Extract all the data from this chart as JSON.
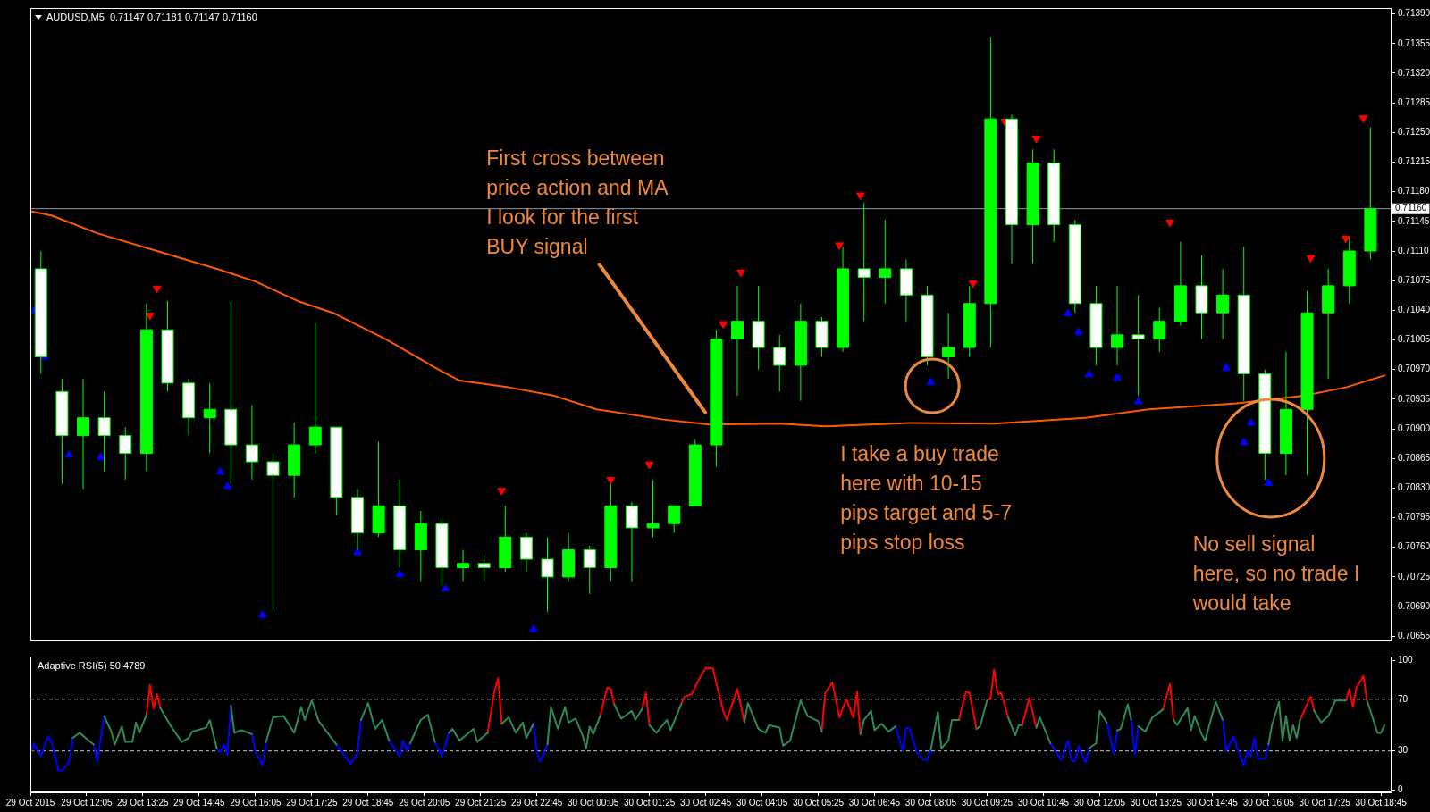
{
  "chart_data": [
    {
      "type": "candlestick",
      "title": "AUDUSD,M5  0.71147 0.71181 0.71147 0.71160",
      "color": "#00ff00",
      "colors": [
        "#ffffff",
        "#ffffff",
        "#00ff00",
        "#ffffff",
        "#ffffff",
        "#00ff00",
        "#ffffff",
        "#ffffff",
        "#00ff00",
        "#ffffff",
        "#ffffff",
        "#ffffff",
        "#00ff00",
        "#00ff00",
        "#ffffff",
        "#ffffff",
        "#00ff00",
        "#ffffff",
        "#00ff00",
        "#ffffff",
        "#00ff00",
        "#ffffff",
        "#00ff00",
        "#ffffff",
        "#ffffff",
        "#00ff00",
        "#ffffff",
        "#00ff00",
        "#ffffff",
        "#00ff00",
        "#00ff00",
        "#00ff00",
        "#00ff00",
        "#00ff00",
        "#ffffff",
        "#ffffff",
        "#00ff00",
        "#ffffff",
        "#00ff00",
        "#ffffff",
        "#00ff00",
        "#ffffff",
        "#ffffff",
        "#00ff00",
        "#00ff00",
        "#00ff00",
        "#ffffff",
        "#00ff00",
        "#ffffff",
        "#ffffff",
        "#ffffff",
        "#00ff00",
        "#ffffff",
        "#00ff00",
        "#00ff00",
        "#ffffff",
        "#00ff00",
        "#ffffff",
        "#ffffff",
        "#00ff00",
        "#00ff00",
        "#00ff00",
        "#00ff00",
        "#00ff00"
      ],
      "x": [
        "2015-10-29T11:00",
        "2015-10-29T11:30",
        "2015-10-29T12:00",
        "2015-10-29T12:30",
        "2015-10-29T13:00",
        "2015-10-29T13:30",
        "2015-10-29T14:00",
        "2015-10-29T14:30",
        "2015-10-29T15:00",
        "2015-10-29T15:30",
        "2015-10-29T16:00",
        "2015-10-29T16:30",
        "2015-10-29T17:00",
        "2015-10-29T17:30",
        "2015-10-29T18:00",
        "2015-10-29T18:30",
        "2015-10-29T19:00",
        "2015-10-29T19:30",
        "2015-10-29T20:00",
        "2015-10-29T20:30",
        "2015-10-29T21:00",
        "2015-10-29T21:30",
        "2015-10-29T22:00",
        "2015-10-29T22:30",
        "2015-10-29T23:00",
        "2015-10-29T23:30",
        "2015-10-30T00:00",
        "2015-10-30T00:30",
        "2015-10-30T01:00",
        "2015-10-30T01:30",
        "2015-10-30T02:00",
        "2015-10-30T02:30",
        "2015-10-30T03:00",
        "2015-10-30T03:30",
        "2015-10-30T04:00",
        "2015-10-30T04:30",
        "2015-10-30T05:00",
        "2015-10-30T05:30",
        "2015-10-30T06:00",
        "2015-10-30T06:30",
        "2015-10-30T07:00",
        "2015-10-30T07:30",
        "2015-10-30T08:00",
        "2015-10-30T08:30",
        "2015-10-30T09:00",
        "2015-10-30T09:30",
        "2015-10-30T10:00",
        "2015-10-30T10:30",
        "2015-10-30T11:00",
        "2015-10-30T11:30",
        "2015-10-30T12:00",
        "2015-10-30T12:30",
        "2015-10-30T13:00",
        "2015-10-30T13:30",
        "2015-10-30T14:00",
        "2015-10-30T14:30",
        "2015-10-30T15:00",
        "2015-10-30T15:30",
        "2015-10-30T16:00",
        "2015-10-30T16:30",
        "2015-10-30T17:00",
        "2015-10-30T17:30",
        "2015-10-30T18:00",
        "2015-10-30T18:30"
      ],
      "ohlc": [
        [
          0.71089,
          0.7111,
          0.70965,
          0.70985
        ],
        [
          0.70944,
          0.70959,
          0.70835,
          0.70892
        ],
        [
          0.70892,
          0.70959,
          0.70829,
          0.70913
        ],
        [
          0.70913,
          0.70944,
          0.7085,
          0.70892
        ],
        [
          0.70892,
          0.70902,
          0.7084,
          0.70871
        ],
        [
          0.70871,
          0.71048,
          0.7085,
          0.71017
        ],
        [
          0.71017,
          0.71051,
          0.70944,
          0.70954
        ],
        [
          0.70954,
          0.70959,
          0.70892,
          0.70913
        ],
        [
          0.70913,
          0.70954,
          0.70871,
          0.70923
        ],
        [
          0.70923,
          0.71051,
          0.70835,
          0.70881
        ],
        [
          0.70881,
          0.70928,
          0.7084,
          0.70861
        ],
        [
          0.70861,
          0.70871,
          0.70686,
          0.70845
        ],
        [
          0.70845,
          0.70907,
          0.70819,
          0.70881
        ],
        [
          0.70881,
          0.71025,
          0.70871,
          0.70902
        ],
        [
          0.70902,
          0.70902,
          0.70798,
          0.70819
        ],
        [
          0.70819,
          0.70829,
          0.70757,
          0.70777
        ],
        [
          0.70777,
          0.70885,
          0.70772,
          0.70809
        ],
        [
          0.70809,
          0.7084,
          0.70736,
          0.70757
        ],
        [
          0.70757,
          0.70803,
          0.7072,
          0.70788
        ],
        [
          0.70788,
          0.70793,
          0.70715,
          0.70736
        ],
        [
          0.70736,
          0.70757,
          0.7072,
          0.70741
        ],
        [
          0.70741,
          0.70751,
          0.7072,
          0.70736
        ],
        [
          0.70736,
          0.70809,
          0.70731,
          0.70772
        ],
        [
          0.70772,
          0.70777,
          0.70731,
          0.70746
        ],
        [
          0.70746,
          0.70772,
          0.70684,
          0.70725
        ],
        [
          0.70725,
          0.70777,
          0.7072,
          0.70757
        ],
        [
          0.70757,
          0.70762,
          0.70705,
          0.70736
        ],
        [
          0.70736,
          0.70835,
          0.7072,
          0.70809
        ],
        [
          0.70809,
          0.70814,
          0.7072,
          0.70783
        ],
        [
          0.70783,
          0.7084,
          0.70772,
          0.70788
        ],
        [
          0.70788,
          0.70809,
          0.70777,
          0.70809
        ],
        [
          0.70809,
          0.70887,
          0.70809,
          0.70881
        ],
        [
          0.70881,
          0.71017,
          0.70855,
          0.71006
        ],
        [
          0.71006,
          0.71069,
          0.70939,
          0.71027
        ],
        [
          0.71027,
          0.71069,
          0.7097,
          0.70996
        ],
        [
          0.70996,
          0.71011,
          0.70944,
          0.70975
        ],
        [
          0.70975,
          0.71048,
          0.70933,
          0.71027
        ],
        [
          0.71027,
          0.71032,
          0.70985,
          0.70996
        ],
        [
          0.70996,
          0.71115,
          0.70991,
          0.71089
        ],
        [
          0.71089,
          0.71167,
          0.71027,
          0.71079
        ],
        [
          0.71079,
          0.71147,
          0.71048,
          0.71089
        ],
        [
          0.71089,
          0.711,
          0.71027,
          0.71058
        ],
        [
          0.71058,
          0.71069,
          0.70975,
          0.70985
        ],
        [
          0.70985,
          0.71037,
          0.70959,
          0.70996
        ],
        [
          0.70996,
          0.71069,
          0.70985,
          0.71048
        ],
        [
          0.71048,
          0.71363,
          0.70996,
          0.71266
        ],
        [
          0.71266,
          0.71271,
          0.71095,
          0.71141
        ],
        [
          0.71141,
          0.7123,
          0.71095,
          0.71214
        ],
        [
          0.71214,
          0.7123,
          0.71121,
          0.71141
        ],
        [
          0.71141,
          0.71147,
          0.71037,
          0.71048
        ],
        [
          0.71048,
          0.71069,
          0.70975,
          0.70996
        ],
        [
          0.70996,
          0.71069,
          0.70975,
          0.71011
        ],
        [
          0.71011,
          0.71058,
          0.70939,
          0.71006
        ],
        [
          0.71006,
          0.71043,
          0.70991,
          0.71027
        ],
        [
          0.71027,
          0.71121,
          0.71022,
          0.71069
        ],
        [
          0.71069,
          0.71105,
          0.71006,
          0.71037
        ],
        [
          0.71037,
          0.71089,
          0.71006,
          0.71058
        ],
        [
          0.71058,
          0.71115,
          0.70933,
          0.70965
        ],
        [
          0.70965,
          0.7097,
          0.7084,
          0.70871
        ],
        [
          0.70871,
          0.70991,
          0.70845,
          0.70923
        ],
        [
          0.70923,
          0.71063,
          0.70845,
          0.71037
        ],
        [
          0.71037,
          0.71089,
          0.70959,
          0.71069
        ],
        [
          0.71069,
          0.71126,
          0.71048,
          0.7111
        ],
        [
          0.7111,
          0.71256,
          0.711,
          0.7116
        ]
      ],
      "series": [
        {
          "type": "line",
          "color": "#ff5a00",
          "x": [
            "2015-10-29T10:45",
            "2015-10-29T11:15",
            "2015-10-29T12:20",
            "2015-10-29T13:45",
            "2015-10-29T15:10",
            "2015-10-29T16:05",
            "2015-10-29T17:05",
            "2015-10-29T17:55",
            "2015-10-29T19:10",
            "2015-10-29T20:25",
            "2015-10-29T20:55",
            "2015-10-29T22:05",
            "2015-10-29T23:10",
            "2015-10-30T00:10",
            "2015-10-30T01:45",
            "2015-10-30T02:50",
            "2015-10-30T04:30",
            "2015-10-30T05:35",
            "2015-10-30T07:35",
            "2015-10-30T09:35",
            "2015-10-30T11:45",
            "2015-10-30T13:15",
            "2015-10-30T15:20",
            "2015-10-30T16:55",
            "2015-10-30T17:55",
            "2015-10-30T18:50"
          ],
          "values": [
            0.71157,
            0.71152,
            0.71131,
            0.7111,
            0.71089,
            0.71074,
            0.71051,
            0.71037,
            0.71006,
            0.7097,
            0.70957,
            0.70949,
            0.70939,
            0.70923,
            0.70911,
            0.70905,
            0.70906,
            0.70903,
            0.70907,
            0.70906,
            0.70913,
            0.70923,
            0.7093,
            0.70939,
            0.70949,
            0.70963
          ]
        },
        {
          "type": "scatter",
          "color": "#0000ff",
          "marker": "triangle",
          "x": [
            "2015-10-29T10:50",
            "2015-10-29T11:05",
            "2015-10-29T11:40",
            "2015-10-29T12:25",
            "2015-10-29T15:15",
            "2015-10-29T15:25",
            "2015-10-29T16:15",
            "2015-10-29T18:30",
            "2015-10-29T19:30",
            "2015-10-29T20:35",
            "2015-10-29T22:40",
            "2015-10-30T08:05",
            "2015-10-30T11:20",
            "2015-10-30T11:35",
            "2015-10-30T11:50",
            "2015-10-30T12:30",
            "2015-10-30T13:00",
            "2015-10-30T15:05",
            "2015-10-30T15:30",
            "2015-10-30T15:40",
            "2015-10-30T16:05"
          ],
          "values": [
            0.71039,
            0.70985,
            0.70869,
            0.70866,
            0.70849,
            0.70832,
            0.7068,
            0.70754,
            0.70728,
            0.70711,
            0.70663,
            0.70955,
            0.71036,
            0.71014,
            0.70964,
            0.7096,
            0.70932,
            0.70972,
            0.70884,
            0.70907,
            0.70836
          ]
        },
        {
          "type": "scatter",
          "color": "#ff0000",
          "marker": "triangle",
          "x": [
            "2015-10-29T13:35",
            "2015-10-29T13:45",
            "2015-10-29T21:55",
            "2015-10-30T00:30",
            "2015-10-30T01:25",
            "2015-10-30T03:10",
            "2015-10-30T03:35",
            "2015-10-30T05:55",
            "2015-10-30T06:25",
            "2015-10-30T09:05",
            "2015-10-30T09:50",
            "2015-10-30T10:35",
            "2015-10-30T13:45",
            "2015-10-30T17:05",
            "2015-10-30T17:55",
            "2015-10-30T18:20"
          ],
          "values": [
            0.71034,
            0.71066,
            0.70827,
            0.7084,
            0.70858,
            0.71024,
            0.71085,
            0.71117,
            0.71176,
            0.71072,
            0.71263,
            0.71243,
            0.71144,
            0.71102,
            0.71125,
            0.71267
          ]
        }
      ],
      "xlim": [
        "2015-10-29T10:45",
        "2015-10-30T19:00"
      ],
      "ylim": [
        0.7065,
        0.71397
      ],
      "yticks": [
        {
          "value": 0.7139,
          "label": "0.71390"
        },
        0.71355,
        {
          "value": 0.7132,
          "label": "0.71320"
        },
        0.71285,
        {
          "value": 0.7125,
          "label": "0.71250"
        },
        0.71215,
        {
          "value": 0.7118,
          "label": "0.71180"
        },
        0.71145,
        {
          "value": 0.7111,
          "label": "0.71110"
        },
        0.71075,
        {
          "value": 0.7104,
          "label": "0.71040"
        },
        0.71005,
        {
          "value": 0.7097,
          "label": "0.70970"
        },
        0.70935,
        {
          "value": 0.709,
          "label": "0.70900"
        },
        0.70865,
        {
          "value": 0.7083,
          "label": "0.70830"
        },
        0.70795,
        {
          "value": 0.7076,
          "label": "0.70760"
        },
        0.70725,
        {
          "value": 0.7069,
          "label": "0.70690"
        },
        0.70655
      ],
      "tick_labels": "y",
      "ref_lines": [
        {
          "axis": "y",
          "value": 0.7116,
          "label": "0.71160",
          "color": "#8c96a0"
        }
      ],
      "annotations": [
        "First cross between\nprice action and MA\nI look for the first\nBUY signal",
        "I take a buy trade\nhere with 10-15\npips target and 5-7\npips stop loss",
        "No sell signal\nhere, so no trade I\nwould take"
      ]
    },
    {
      "type": "line",
      "title": "Adaptive RSI(5) 50.4789",
      "x": [
        "2015-10-29T10:45",
        "2015-10-29T10:50",
        "2015-10-29T11:00",
        "2015-10-29T11:10",
        "2015-10-29T11:15",
        "2015-10-29T11:25",
        "2015-10-29T11:30",
        "2015-10-29T11:40",
        "2015-10-29T11:45",
        "2015-10-29T11:55",
        "2015-10-29T12:15",
        "2015-10-29T12:20",
        "2015-10-29T12:30",
        "2015-10-29T12:40",
        "2015-10-29T12:45",
        "2015-10-29T12:55",
        "2015-10-29T13:00",
        "2015-10-29T13:10",
        "2015-10-29T13:15",
        "2015-10-29T13:20",
        "2015-10-29T13:30",
        "2015-10-29T13:35",
        "2015-10-29T13:40",
        "2015-10-29T13:45",
        "2015-10-29T13:50",
        "2015-10-29T14:05",
        "2015-10-29T14:20",
        "2015-10-29T14:30",
        "2015-10-29T14:35",
        "2015-10-29T14:55",
        "2015-10-29T15:00",
        "2015-10-29T15:10",
        "2015-10-29T15:15",
        "2015-10-29T15:20",
        "2015-10-29T15:25",
        "2015-10-29T15:30",
        "2015-10-29T15:35",
        "2015-10-29T15:45",
        "2015-10-29T16:00",
        "2015-10-29T16:05",
        "2015-10-29T16:15",
        "2015-10-29T16:20",
        "2015-10-29T16:30",
        "2015-10-29T16:45",
        "2015-10-29T17:00",
        "2015-10-29T17:10",
        "2015-10-29T17:15",
        "2015-10-29T17:25",
        "2015-10-29T17:35",
        "2015-10-29T18:00",
        "2015-10-29T18:20",
        "2015-10-29T18:30",
        "2015-10-29T18:35",
        "2015-10-29T18:45",
        "2015-10-29T18:55",
        "2015-10-29T19:05",
        "2015-10-29T19:15",
        "2015-10-29T19:30",
        "2015-10-29T19:35",
        "2015-10-29T19:40",
        "2015-10-29T19:45",
        "2015-10-29T20:00",
        "2015-10-29T20:10",
        "2015-10-29T20:20",
        "2015-10-29T20:30",
        "2015-10-29T20:40",
        "2015-10-29T20:45",
        "2015-10-29T20:55",
        "2015-10-29T21:15",
        "2015-10-29T21:20",
        "2015-10-29T21:35",
        "2015-10-29T21:45",
        "2015-10-29T21:50",
        "2015-10-29T21:55",
        "2015-10-29T22:05",
        "2015-10-29T22:15",
        "2015-10-29T22:25",
        "2015-10-29T22:30",
        "2015-10-29T22:40",
        "2015-10-29T22:45",
        "2015-10-29T22:50",
        "2015-10-29T23:00",
        "2015-10-29T23:05",
        "2015-10-29T23:15",
        "2015-10-29T23:25",
        "2015-10-29T23:30",
        "2015-10-29T23:40",
        "2015-10-29T23:50",
        "2015-10-29T23:55",
        "2015-10-30T00:00",
        "2015-10-30T00:05",
        "2015-10-30T00:15",
        "2015-10-30T00:25",
        "2015-10-30T00:30",
        "2015-10-30T00:35",
        "2015-10-30T00:45",
        "2015-10-30T01:00",
        "2015-10-30T01:05",
        "2015-10-30T01:15",
        "2015-10-30T01:20",
        "2015-10-30T01:25",
        "2015-10-30T01:35",
        "2015-10-30T01:50",
        "2015-10-30T01:55",
        "2015-10-30T02:10",
        "2015-10-30T02:15",
        "2015-10-30T02:25",
        "2015-10-30T02:35",
        "2015-10-30T02:45",
        "2015-10-30T02:55",
        "2015-10-30T03:00",
        "2015-10-30T03:10",
        "2015-10-30T03:15",
        "2015-10-30T03:30",
        "2015-10-30T03:40",
        "2015-10-30T03:45",
        "2015-10-30T04:00",
        "2015-10-30T04:10",
        "2015-10-30T04:15",
        "2015-10-30T04:30",
        "2015-10-30T04:35",
        "2015-10-30T04:45",
        "2015-10-30T05:00",
        "2015-10-30T05:10",
        "2015-10-30T05:25",
        "2015-10-30T05:30",
        "2015-10-30T05:35",
        "2015-10-30T05:45",
        "2015-10-30T05:55",
        "2015-10-30T06:05",
        "2015-10-30T06:15",
        "2015-10-30T06:20",
        "2015-10-30T06:25",
        "2015-10-30T06:30",
        "2015-10-30T06:40",
        "2015-10-30T06:45",
        "2015-10-30T06:55",
        "2015-10-30T07:05",
        "2015-10-30T07:15",
        "2015-10-30T07:25",
        "2015-10-30T07:30",
        "2015-10-30T07:35",
        "2015-10-30T07:45",
        "2015-10-30T07:55",
        "2015-10-30T08:00",
        "2015-10-30T08:05",
        "2015-10-30T08:15",
        "2015-10-30T08:20",
        "2015-10-30T08:30",
        "2015-10-30T08:35",
        "2015-10-30T08:45",
        "2015-10-30T08:55",
        "2015-10-30T09:00",
        "2015-10-30T09:10",
        "2015-10-30T09:15",
        "2015-10-30T09:25",
        "2015-10-30T09:30",
        "2015-10-30T09:35",
        "2015-10-30T09:40",
        "2015-10-30T09:45",
        "2015-10-30T09:55",
        "2015-10-30T10:05",
        "2015-10-30T10:10",
        "2015-10-30T10:15",
        "2015-10-30T10:25",
        "2015-10-30T10:35",
        "2015-10-30T10:40",
        "2015-10-30T10:55",
        "2015-10-30T11:10",
        "2015-10-30T11:20",
        "2015-10-30T11:25",
        "2015-10-30T11:30",
        "2015-10-30T11:35",
        "2015-10-30T11:45",
        "2015-10-30T11:50",
        "2015-10-30T12:00",
        "2015-10-30T12:05",
        "2015-10-30T12:15",
        "2015-10-30T12:25",
        "2015-10-30T12:30",
        "2015-10-30T12:35",
        "2015-10-30T12:45",
        "2015-10-30T12:50",
        "2015-10-30T12:55",
        "2015-10-30T13:00",
        "2015-10-30T13:10",
        "2015-10-30T13:20",
        "2015-10-30T13:35",
        "2015-10-30T13:45",
        "2015-10-30T13:50",
        "2015-10-30T13:55",
        "2015-10-30T14:10",
        "2015-10-30T14:15",
        "2015-10-30T14:20",
        "2015-10-30T14:30",
        "2015-10-30T14:35",
        "2015-10-30T14:50",
        "2015-10-30T15:00",
        "2015-10-30T15:05",
        "2015-10-30T15:15",
        "2015-10-30T15:20",
        "2015-10-30T15:30",
        "2015-10-30T15:35",
        "2015-10-30T15:40",
        "2015-10-30T15:45",
        "2015-10-30T15:50",
        "2015-10-30T16:00",
        "2015-10-30T16:05",
        "2015-10-30T16:10",
        "2015-10-30T16:20",
        "2015-10-30T16:25",
        "2015-10-30T16:30",
        "2015-10-30T16:35",
        "2015-10-30T16:40",
        "2015-10-30T16:45",
        "2015-10-30T16:50",
        "2015-10-30T17:05",
        "2015-10-30T17:10",
        "2015-10-30T17:20",
        "2015-10-30T17:30",
        "2015-10-30T17:40",
        "2015-10-30T17:55",
        "2015-10-30T18:00",
        "2015-10-30T18:05",
        "2015-10-30T18:10",
        "2015-10-30T18:20",
        "2015-10-30T18:25",
        "2015-10-30T18:30",
        "2015-10-30T18:40",
        "2015-10-30T18:45",
        "2015-10-30T18:50"
      ],
      "series": [
        {
          "color": "#2e8b57",
          "values": [
            null,
            null,
            null,
            null,
            null,
            null,
            null,
            null,
            40,
            44,
            35,
            null,
            57,
            45,
            35,
            49,
            37,
            37,
            52,
            44,
            58,
            null,
            null,
            null,
            63,
            49,
            37,
            40,
            45,
            48,
            54,
            32,
            null,
            null,
            null,
            65,
            44,
            46,
            43,
            null,
            null,
            37,
            56,
            57,
            44,
            64,
            54,
            69,
            53,
            35,
            null,
            null,
            54,
            67,
            47,
            54,
            38,
            null,
            null,
            null,
            36,
            54,
            58,
            37,
            null,
            44,
            47,
            38,
            47,
            37,
            44,
            null,
            null,
            51,
            56,
            44,
            52,
            40,
            51,
            null,
            null,
            35,
            64,
            47,
            64,
            52,
            55,
            42,
            32,
            49,
            43,
            57,
            null,
            null,
            66,
            55,
            61,
            54,
            63,
            null,
            50,
            44,
            54,
            46,
            66,
            null,
            null,
            null,
            null,
            null,
            null,
            null,
            null,
            null,
            52,
            67,
            47,
            44,
            50,
            48,
            34,
            38,
            69,
            57,
            53,
            45,
            null,
            null,
            null,
            null,
            null,
            null,
            43,
            54,
            61,
            46,
            51,
            45,
            49,
            null,
            null,
            null,
            null,
            null,
            null,
            31,
            60,
            32,
            38,
            54,
            54,
            null,
            null,
            47,
            49,
            69,
            null,
            null,
            null,
            null,
            56,
            42,
            50,
            50,
            null,
            48,
            56,
            36,
            null,
            null,
            null,
            null,
            null,
            null,
            32,
            36,
            61,
            52,
            null,
            46,
            47,
            66,
            54,
            null,
            49,
            45,
            56,
            62,
            null,
            54,
            50,
            63,
            46,
            57,
            43,
            38,
            68,
            54,
            null,
            null,
            null,
            null,
            null,
            null,
            null,
            null,
            null,
            35,
            50,
            68,
            38,
            57,
            38,
            50,
            40,
            54,
            null,
            61,
            52,
            57,
            69,
            69,
            null,
            null,
            null,
            null,
            69,
            61,
            44,
            44,
            50
          ]
        },
        {
          "color": "#ff0000",
          "values": [
            null,
            null,
            null,
            null,
            null,
            null,
            null,
            null,
            null,
            null,
            null,
            null,
            null,
            null,
            null,
            null,
            null,
            null,
            null,
            null,
            58,
            81,
            63,
            74,
            63,
            null,
            null,
            null,
            null,
            null,
            null,
            null,
            null,
            null,
            null,
            null,
            null,
            null,
            null,
            null,
            null,
            null,
            null,
            null,
            null,
            null,
            null,
            null,
            null,
            null,
            null,
            null,
            null,
            null,
            null,
            null,
            null,
            null,
            null,
            null,
            null,
            null,
            null,
            null,
            null,
            null,
            null,
            null,
            null,
            null,
            44,
            77,
            86,
            51,
            null,
            null,
            null,
            null,
            null,
            null,
            null,
            null,
            null,
            null,
            null,
            null,
            null,
            null,
            null,
            null,
            null,
            57,
            79,
            78,
            66,
            null,
            null,
            null,
            63,
            75,
            50,
            null,
            null,
            null,
            66,
            72,
            74,
            85,
            94,
            94,
            83,
            61,
            54,
            78,
            52,
            null,
            null,
            null,
            null,
            null,
            null,
            null,
            null,
            null,
            null,
            45,
            75,
            83,
            56,
            70,
            56,
            76,
            43,
            null,
            null,
            null,
            null,
            null,
            null,
            null,
            null,
            null,
            null,
            null,
            null,
            null,
            null,
            null,
            null,
            null,
            54,
            76,
            75,
            47,
            null,
            69,
            71,
            93,
            74,
            75,
            56,
            null,
            null,
            50,
            71,
            48,
            null,
            null,
            null,
            null,
            null,
            null,
            null,
            null,
            null,
            null,
            null,
            null,
            null,
            null,
            null,
            null,
            null,
            null,
            null,
            null,
            null,
            62,
            82,
            54,
            null,
            null,
            null,
            null,
            null,
            null,
            null,
            null,
            null,
            null,
            null,
            null,
            null,
            null,
            null,
            null,
            null,
            null,
            null,
            null,
            null,
            null,
            null,
            null,
            null,
            54,
            72,
            61,
            null,
            null,
            null,
            69,
            78,
            64,
            79,
            88,
            69,
            null,
            null,
            null,
            null
          ]
        },
        {
          "color": "#0000ff",
          "values": [
            27,
            36,
            26,
            41,
            37,
            15,
            15,
            21,
            40,
            null,
            35,
            22,
            57,
            null,
            null,
            null,
            null,
            null,
            null,
            null,
            null,
            null,
            null,
            null,
            null,
            null,
            null,
            null,
            null,
            null,
            null,
            32,
            29,
            35,
            27,
            65,
            null,
            null,
            43,
            29,
            19,
            37,
            null,
            null,
            null,
            null,
            null,
            null,
            null,
            35,
            20,
            28,
            54,
            null,
            null,
            null,
            38,
            26,
            38,
            30,
            36,
            null,
            null,
            37,
            26,
            44,
            null,
            null,
            null,
            null,
            null,
            null,
            null,
            null,
            null,
            null,
            null,
            null,
            51,
            29,
            22,
            35,
            null,
            null,
            null,
            null,
            null,
            null,
            null,
            null,
            null,
            null,
            null,
            null,
            null,
            null,
            null,
            null,
            null,
            null,
            null,
            null,
            null,
            null,
            null,
            null,
            null,
            null,
            null,
            null,
            null,
            null,
            null,
            null,
            null,
            null,
            null,
            null,
            null,
            null,
            null,
            null,
            null,
            null,
            null,
            null,
            null,
            null,
            null,
            null,
            null,
            null,
            null,
            null,
            null,
            null,
            null,
            null,
            49,
            30,
            48,
            47,
            29,
            23,
            23,
            31,
            null,
            null,
            null,
            null,
            null,
            null,
            null,
            null,
            null,
            null,
            null,
            null,
            null,
            null,
            null,
            null,
            null,
            null,
            null,
            null,
            null,
            36,
            23,
            38,
            23,
            22,
            34,
            21,
            32,
            null,
            null,
            52,
            28,
            46,
            null,
            null,
            54,
            27,
            49,
            null,
            null,
            null,
            null,
            null,
            null,
            null,
            null,
            null,
            null,
            null,
            null,
            54,
            30,
            41,
            33,
            19,
            30,
            26,
            40,
            24,
            24,
            35,
            null,
            null,
            null,
            null,
            null,
            null,
            null,
            null,
            null,
            null,
            null,
            null,
            null,
            null,
            null,
            null,
            null,
            null,
            null,
            null,
            null,
            null,
            null
          ]
        }
      ],
      "xlim": [
        "2015-10-29T10:45",
        "2015-10-30T19:00"
      ],
      "xticks": [
        {
          "value": "2015-10-29T10:45",
          "label": "29 Oct 2015"
        },
        {
          "value": "2015-10-29T12:05",
          "label": "29 Oct 12:05"
        },
        {
          "value": "2015-10-29T13:25",
          "label": "29 Oct 13:25"
        },
        {
          "value": "2015-10-29T14:45",
          "label": "29 Oct 14:45"
        },
        {
          "value": "2015-10-29T16:05",
          "label": "29 Oct 16:05"
        },
        {
          "value": "2015-10-29T17:25",
          "label": "29 Oct 17:25"
        },
        {
          "value": "2015-10-29T18:45",
          "label": "29 Oct 18:45"
        },
        {
          "value": "2015-10-29T20:05",
          "label": "29 Oct 20:05"
        },
        {
          "value": "2015-10-29T21:25",
          "label": "29 Oct 21:25"
        },
        {
          "value": "2015-10-29T22:45",
          "label": "29 Oct 22:45"
        },
        {
          "value": "2015-10-30T00:05",
          "label": "30 Oct 00:05"
        },
        {
          "value": "2015-10-30T01:25",
          "label": "30 Oct 01:25"
        },
        {
          "value": "2015-10-30T02:45",
          "label": "30 Oct 02:45"
        },
        {
          "value": "2015-10-30T04:05",
          "label": "30 Oct 04:05"
        },
        {
          "value": "2015-10-30T05:25",
          "label": "30 Oct 05:25"
        },
        {
          "value": "2015-10-30T06:45",
          "label": "30 Oct 06:45"
        },
        {
          "value": "2015-10-30T08:05",
          "label": "30 Oct 08:05"
        },
        {
          "value": "2015-10-30T09:25",
          "label": "30 Oct 09:25"
        },
        {
          "value": "2015-10-30T10:45",
          "label": "30 Oct 10:45"
        },
        {
          "value": "2015-10-30T12:05",
          "label": "30 Oct 12:05"
        },
        {
          "value": "2015-10-30T13:25",
          "label": "30 Oct 13:25"
        },
        {
          "value": "2015-10-30T14:45",
          "label": "30 Oct 14:45"
        },
        {
          "value": "2015-10-30T16:05",
          "label": "30 Oct 16:05"
        },
        {
          "value": "2015-10-30T17:25",
          "label": "30 Oct 17:25"
        },
        {
          "value": "2015-10-30T18:45",
          "label": "30 Oct 18:45"
        }
      ],
      "ylim": [
        -2,
        103
      ],
      "yticks": [
        0,
        30,
        70,
        100
      ],
      "ref_lines": [
        {
          "axis": "y",
          "value": 70,
          "color": "#c8c8c8",
          "line_style": "dashed"
        },
        {
          "axis": "y",
          "value": 30,
          "color": "#c8c8c8",
          "line_style": "dashed"
        }
      ]
    }
  ]
}
